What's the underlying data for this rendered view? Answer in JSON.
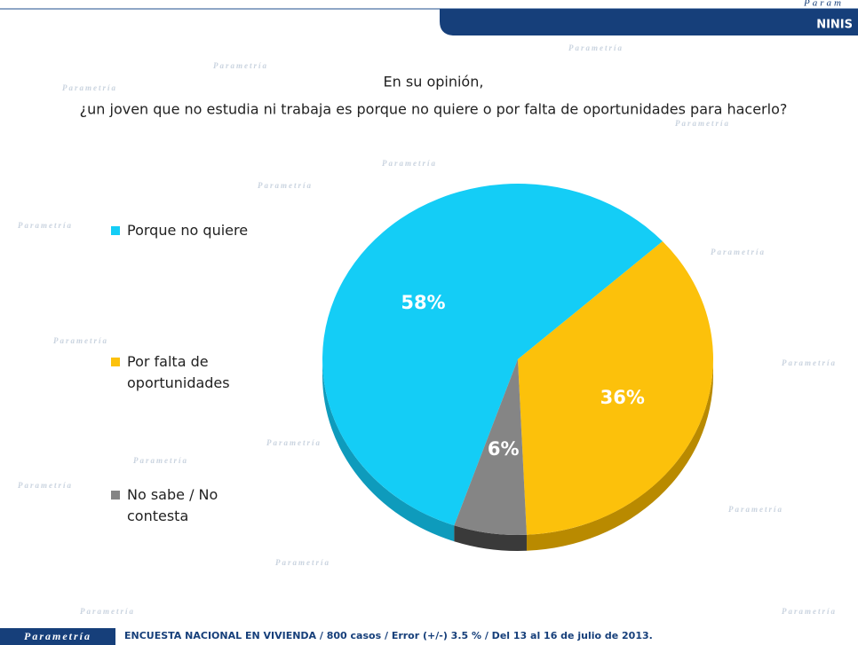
{
  "header": {
    "brand": "Param",
    "section": "NINIS"
  },
  "watermark": "Parametría",
  "chart_data": {
    "type": "pie",
    "title": [
      "En su opinión,",
      "¿un joven que no estudia ni trabaja es porque no quiere o por falta de oportunidades para hacerlo?"
    ],
    "categories": [
      "Porque no quiere",
      "Por falta de oportunidades",
      "No sabe / No contesta"
    ],
    "values": [
      58,
      36,
      6
    ],
    "value_labels": [
      "58%",
      "36%",
      "6%"
    ],
    "colors": [
      "#14cdf6",
      "#fcc10b",
      "#858585"
    ],
    "legend": "left"
  },
  "footer": {
    "brand": "Parametría",
    "note": "ENCUESTA NACIONAL EN VIVIENDA / 800 casos / Error (+/-) 3.5 % / Del 13 al 16 de julio de 2013."
  }
}
